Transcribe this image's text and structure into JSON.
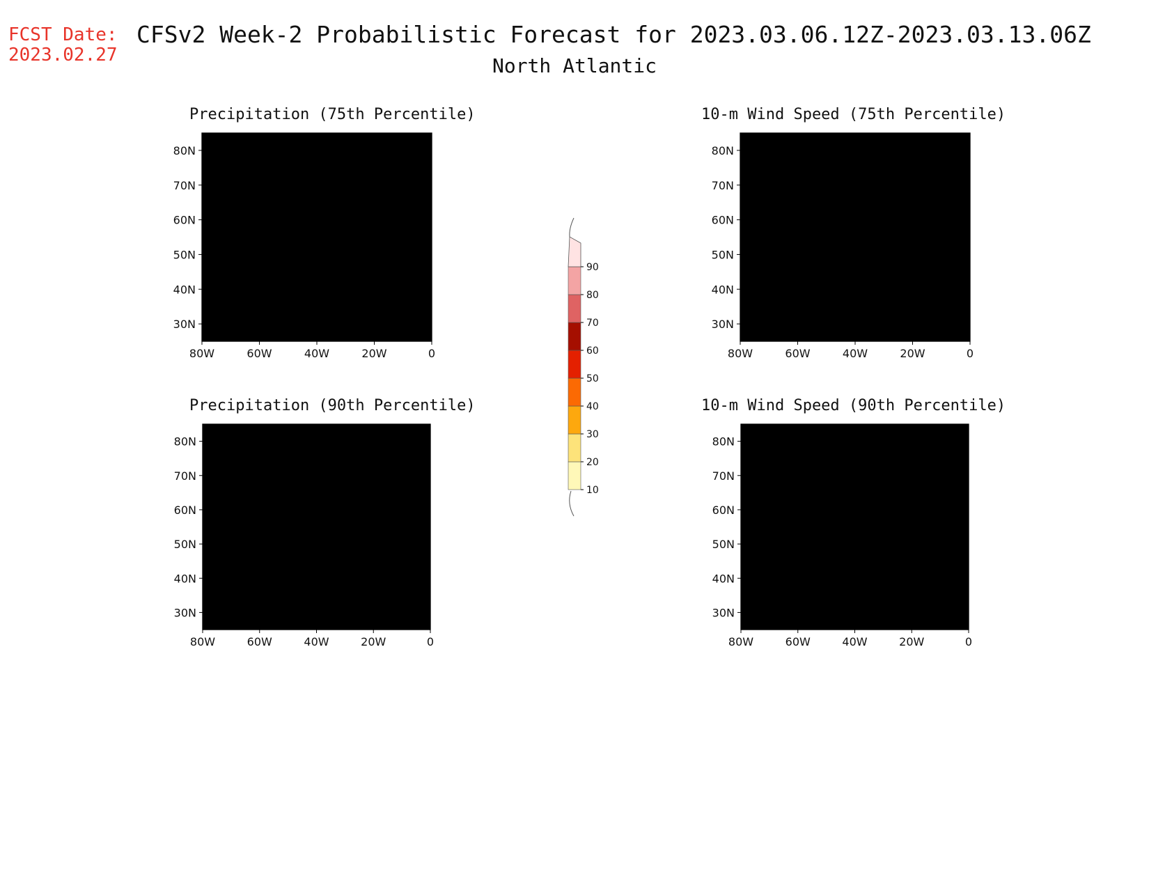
{
  "header": {
    "fcst_label": "FCST Date:",
    "fcst_date": "2023.02.27",
    "title": "CFSv2 Week-2 Probabilistic Forecast for 2023.03.06.12Z-2023.03.13.06Z",
    "subtitle": "North Atlantic"
  },
  "panels": [
    {
      "title": "Precipitation (75th Percentile)"
    },
    {
      "title": "10-m Wind Speed (75th Percentile)"
    },
    {
      "title": "Precipitation (90th Percentile)"
    },
    {
      "title": "10-m Wind Speed (90th Percentile)"
    }
  ],
  "axes": {
    "lat_labels": [
      "80N",
      "70N",
      "60N",
      "50N",
      "40N",
      "30N"
    ],
    "lat_values": [
      80,
      70,
      60,
      50,
      40,
      30
    ],
    "lon_labels": [
      "80W",
      "60W",
      "40W",
      "20W",
      "0"
    ],
    "lon_values": [
      -80,
      -60,
      -40,
      -20,
      0
    ],
    "lat_range": [
      25,
      85
    ],
    "lon_range": [
      -80,
      0
    ]
  },
  "colorbar": {
    "levels": [
      "10",
      "20",
      "30",
      "40",
      "50",
      "60",
      "70",
      "80",
      "90"
    ],
    "colors": [
      "#fff8b8",
      "#fde37a",
      "#fda80e",
      "#fb6a03",
      "#e42000",
      "#a50f00",
      "#df6363",
      "#f3a4a4",
      "#ffe3e3"
    ]
  }
}
